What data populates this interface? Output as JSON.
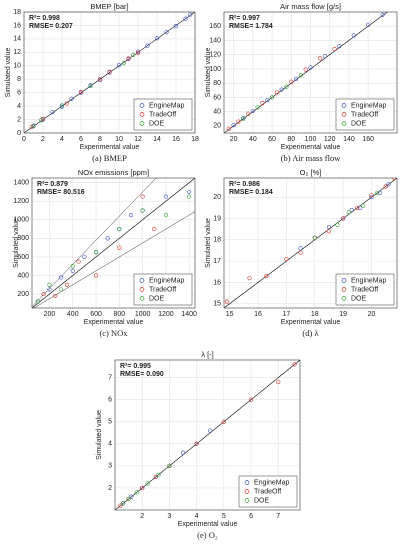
{
  "chart_data": [
    {
      "type": "scatter",
      "title": "BMEP [bar]",
      "caption": "(a) BMEP",
      "xlabel": "Experimental value",
      "ylabel": "Simulated value",
      "annotations": [
        "R²= 0.998",
        "RMSE= 0.207"
      ],
      "xlim": [
        0,
        18
      ],
      "xticks": [
        0,
        2,
        4,
        6,
        8,
        10,
        12,
        14,
        16,
        18
      ],
      "ylim": [
        0,
        18
      ],
      "yticks": [
        0,
        2,
        4,
        6,
        8,
        10,
        12,
        14,
        16,
        18
      ],
      "grid": true,
      "legend": "lower right",
      "series": [
        {
          "name": "EngineMap",
          "color": "#3a4fd0",
          "x": [
            1,
            2,
            3,
            4,
            5,
            6,
            7,
            8,
            9,
            10,
            11,
            12,
            13,
            14,
            15,
            16,
            17,
            17.5
          ],
          "values": [
            1.1,
            2.0,
            3.1,
            3.9,
            5.1,
            6.0,
            7.1,
            7.9,
            9.0,
            10.1,
            11.0,
            12.1,
            13.0,
            14.1,
            15.0,
            15.9,
            17.0,
            17.6
          ]
        },
        {
          "name": "TradeOff",
          "color": "#e0302a",
          "x": [
            0.8,
            2,
            4.5,
            6,
            8,
            9,
            11,
            12
          ],
          "values": [
            0.9,
            2.1,
            4.4,
            6.1,
            8.0,
            9.1,
            11.1,
            11.9
          ]
        },
        {
          "name": "DOE",
          "color": "#2ea32e",
          "x": [
            1,
            1.8,
            4,
            7,
            10.5,
            11.5
          ],
          "values": [
            1.0,
            1.9,
            4.1,
            7.0,
            10.4,
            11.6
          ]
        }
      ]
    },
    {
      "type": "scatter",
      "title": "Air mass flow [g/s]",
      "caption": "(b) Air mass flow",
      "xlabel": "Experimental value",
      "ylabel": "Simulated value",
      "annotations": [
        "R²= 0.997",
        "RMSE= 1.784"
      ],
      "xlim": [
        10,
        190
      ],
      "xticks": [
        20,
        40,
        60,
        80,
        100,
        120,
        140,
        160
      ],
      "ylim": [
        10,
        180
      ],
      "yticks": [
        20,
        40,
        60,
        80,
        100,
        120,
        140,
        160
      ],
      "grid": true,
      "legend": "lower right",
      "series": [
        {
          "name": "EngineMap",
          "color": "#3a4fd0",
          "x": [
            20,
            30,
            40,
            55,
            70,
            85,
            100,
            115,
            130,
            145,
            160,
            175
          ],
          "values": [
            21,
            31,
            41,
            56,
            71,
            86,
            102,
            118,
            132,
            147,
            162,
            176
          ]
        },
        {
          "name": "TradeOff",
          "color": "#e0302a",
          "x": [
            15,
            25,
            35,
            50,
            65,
            80,
            95,
            110,
            125
          ],
          "values": [
            16,
            26,
            37,
            52,
            67,
            82,
            99,
            115,
            128
          ]
        },
        {
          "name": "DOE",
          "color": "#2ea32e",
          "x": [
            30,
            45,
            60,
            75,
            90
          ],
          "values": [
            30,
            46,
            60,
            75,
            91
          ]
        }
      ]
    },
    {
      "type": "scatter",
      "title": "NOx emissions [ppm]",
      "caption": "(c) NOx",
      "xlabel": "Experimental value",
      "ylabel": "Simulated value",
      "annotations": [
        "R²= 0.879",
        "RMSE= 80.516"
      ],
      "bounds": true,
      "xlim": [
        50,
        1450
      ],
      "xticks": [
        200,
        400,
        600,
        800,
        1000,
        1200,
        1400
      ],
      "ylim": [
        50,
        1450
      ],
      "yticks": [
        200,
        400,
        600,
        800,
        1000,
        1200,
        1400
      ],
      "grid": true,
      "legend": "lower right",
      "series": [
        {
          "name": "EngineMap",
          "color": "#3a4fd0",
          "x": [
            100,
            200,
            300,
            400,
            500,
            600,
            700,
            800,
            900,
            1000,
            1200,
            1400
          ],
          "values": [
            120,
            250,
            380,
            450,
            600,
            650,
            800,
            900,
            1050,
            1100,
            1250,
            1300
          ]
        },
        {
          "name": "TradeOff",
          "color": "#e0302a",
          "x": [
            150,
            250,
            350,
            450,
            600,
            800,
            1000,
            1100
          ],
          "values": [
            200,
            180,
            300,
            550,
            400,
            700,
            1250,
            900
          ]
        },
        {
          "name": "DOE",
          "color": "#2ea32e",
          "x": [
            100,
            200,
            300,
            400,
            600,
            800,
            1000,
            1200,
            1400
          ],
          "values": [
            120,
            300,
            250,
            500,
            650,
            900,
            1100,
            1050,
            1250
          ]
        }
      ]
    },
    {
      "type": "scatter",
      "title": "O₂ [%]",
      "caption": "(d) λ",
      "xlabel": "Experimental value",
      "ylabel": "Simulated value",
      "annotations": [
        "R²= 0.986",
        "RMSE= 0.184"
      ],
      "xlim": [
        14.8,
        20.9
      ],
      "xticks": [
        15,
        16,
        17,
        18,
        19,
        20
      ],
      "ylim": [
        14.8,
        20.9
      ],
      "yticks": [
        15,
        16,
        17,
        18,
        19,
        20
      ],
      "grid": true,
      "legend": "lower right",
      "series": [
        {
          "name": "EngineMap",
          "color": "#3a4fd0",
          "x": [
            17.5,
            18,
            18.5,
            19,
            19.3,
            19.6,
            20,
            20.3,
            20.6
          ],
          "values": [
            17.6,
            18.1,
            18.6,
            19.0,
            19.4,
            19.5,
            20.0,
            20.2,
            20.6
          ]
        },
        {
          "name": "TradeOff",
          "color": "#e0302a",
          "x": [
            14.9,
            15.7,
            16.3,
            17,
            17.5,
            18,
            18.5,
            19,
            19.5,
            20,
            20.5,
            20.8
          ],
          "values": [
            15.1,
            16.2,
            16.3,
            17.1,
            17.4,
            18.1,
            18.4,
            19.0,
            19.5,
            20.1,
            20.5,
            20.9
          ]
        },
        {
          "name": "DOE",
          "color": "#2ea32e",
          "x": [
            18,
            18.8,
            19.2,
            19.7,
            20.2
          ],
          "values": [
            18.1,
            18.7,
            19.3,
            19.6,
            20.2
          ]
        }
      ]
    },
    {
      "type": "scatter",
      "title": "λ [-]",
      "caption": "(e) O₂",
      "xlabel": "Experimental value",
      "ylabel": "Simulated value",
      "annotations": [
        "R²= 0.995",
        "RMSE= 0.090"
      ],
      "xlim": [
        1,
        7.8
      ],
      "xticks": [
        2,
        3,
        4,
        5,
        6,
        7
      ],
      "ylim": [
        1,
        7.8
      ],
      "yticks": [
        2,
        3,
        4,
        5,
        6,
        7
      ],
      "grid": true,
      "legend": "lower right",
      "series": [
        {
          "name": "EngineMap",
          "color": "#3a4fd0",
          "x": [
            1.3,
            1.6,
            2,
            2.5,
            3,
            3.5,
            4,
            4.5
          ],
          "values": [
            1.3,
            1.6,
            2.0,
            2.5,
            3.0,
            3.6,
            4.0,
            4.6
          ]
        },
        {
          "name": "TradeOff",
          "color": "#e0302a",
          "x": [
            1.2,
            1.5,
            2,
            2.5,
            3,
            4,
            5,
            6,
            7,
            7.6
          ],
          "values": [
            1.2,
            1.5,
            2.0,
            2.5,
            3.0,
            4.0,
            5.0,
            6.0,
            6.8,
            7.6
          ]
        },
        {
          "name": "DOE",
          "color": "#2ea32e",
          "x": [
            1.3,
            1.5,
            1.8,
            2.2,
            2.6,
            3
          ],
          "values": [
            1.3,
            1.5,
            1.8,
            2.2,
            2.6,
            3.0
          ]
        }
      ]
    }
  ]
}
